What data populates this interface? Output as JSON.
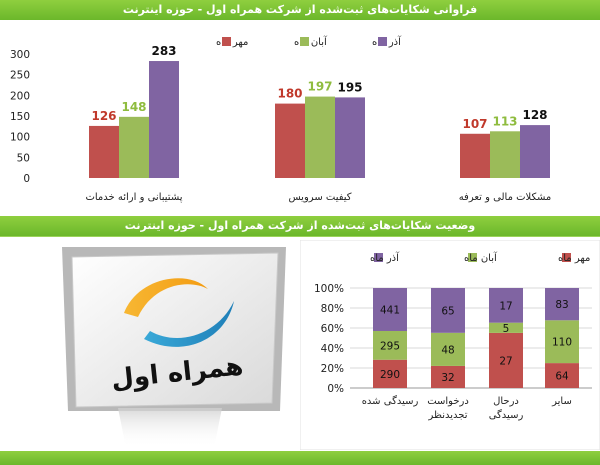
{
  "headers": {
    "top": "فراوانی شکایات‌های ثبت‌شده از شرکت همراه اول  - حوزه اینترنت",
    "middle": "وضعیت شکایات‌های ثبت‌شده از شرکت همراه اول  - حوزه اینترنت"
  },
  "logo": {
    "text": "همراه اول"
  },
  "chart_data": [
    {
      "type": "bar",
      "categories": [
        "پشتیبانی و ارائه خدمات",
        "کیفیت سرویس",
        "مشکلات مالی و تعرفه"
      ],
      "series": [
        {
          "name": "مهر ماه",
          "values": [
            126,
            180,
            107
          ],
          "color": "#c0504d",
          "label_color": "#c0392b"
        },
        {
          "name": "آبان ماه",
          "values": [
            148,
            197,
            113
          ],
          "color": "#9bbb59",
          "label_color": "#8fbc3f"
        },
        {
          "name": "آذر ماه",
          "values": [
            283,
            195,
            128
          ],
          "color": "#8064a2",
          "label_color": "#111111"
        }
      ],
      "yticks": [
        0,
        50,
        100,
        150,
        200,
        250,
        300
      ],
      "ylim": [
        0,
        300
      ],
      "legend": "top-right"
    },
    {
      "type": "bar",
      "stacked": "percent",
      "categories": [
        [
          "رسیدگی شده"
        ],
        [
          "درخواست",
          "تجدیدنظر"
        ],
        [
          "درحال",
          "رسیدگی"
        ],
        [
          "سایر"
        ]
      ],
      "series": [
        {
          "name": "مهر ماه",
          "values": [
            290,
            32,
            27,
            64
          ],
          "color": "#c0504d"
        },
        {
          "name": "آبان ماه",
          "values": [
            295,
            48,
            5,
            110
          ],
          "color": "#9bbb59"
        },
        {
          "name": "آذر ماه",
          "values": [
            441,
            65,
            17,
            83
          ],
          "color": "#8064a2"
        }
      ],
      "yticks": [
        "0%",
        "20%",
        "40%",
        "60%",
        "80%",
        "100%"
      ],
      "ylim": [
        0,
        100
      ],
      "legend": "top"
    }
  ]
}
